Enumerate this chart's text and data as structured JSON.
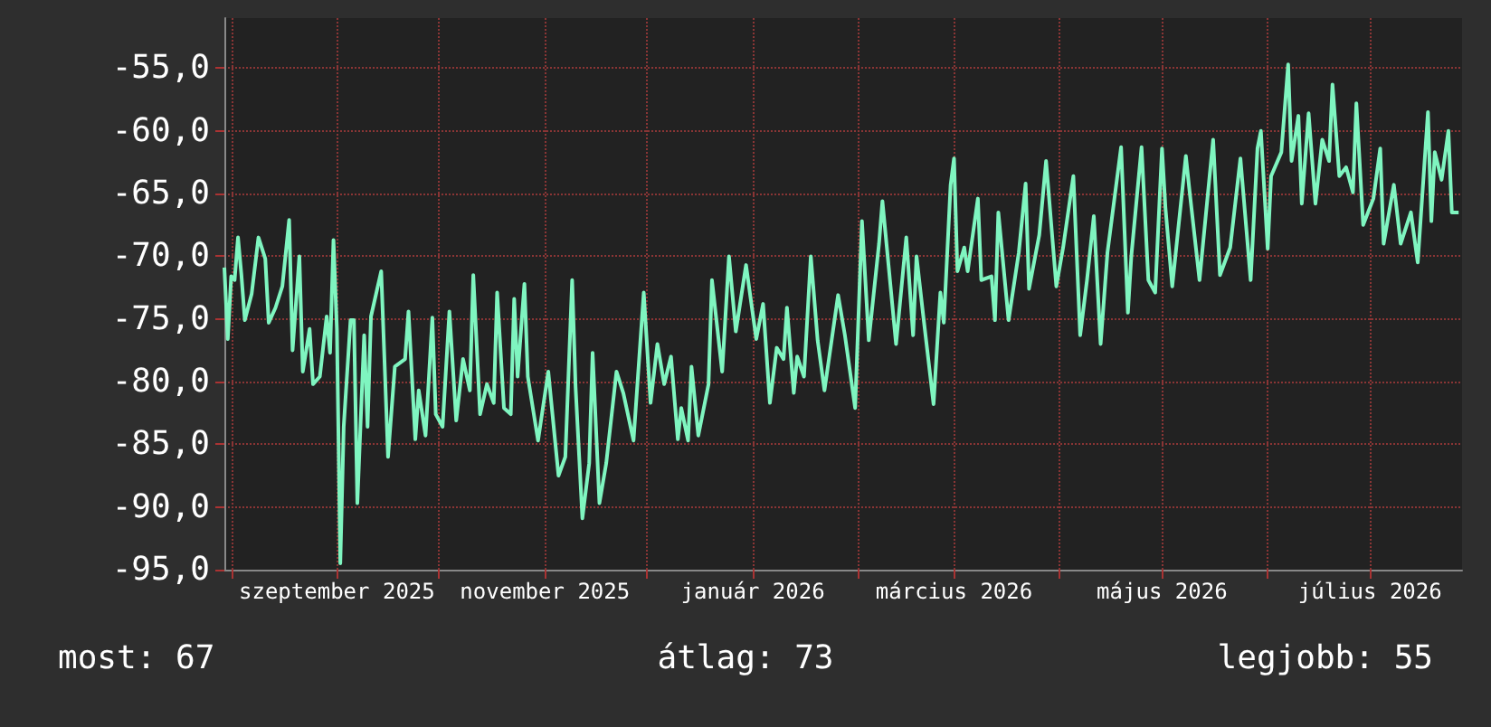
{
  "chart_data": {
    "type": "line",
    "color": "#7ff5c0",
    "marker": "none",
    "grid": true,
    "xlim": [
      "2025-07-30",
      "2026-07-28"
    ],
    "ylim": [
      -95,
      -51
    ],
    "xticks": [
      {
        "value": "2025-08-01",
        "label": null
      },
      {
        "value": "2025-09-01",
        "label": "szeptember 2025"
      },
      {
        "value": "2025-10-01",
        "label": null
      },
      {
        "value": "2025-11-01",
        "label": "november 2025"
      },
      {
        "value": "2025-12-01",
        "label": null
      },
      {
        "value": "2026-01-01",
        "label": "január 2026"
      },
      {
        "value": "2026-02-01",
        "label": null
      },
      {
        "value": "2026-03-01",
        "label": "március 2026"
      },
      {
        "value": "2026-04-01",
        "label": null
      },
      {
        "value": "2026-05-01",
        "label": "május 2026"
      },
      {
        "value": "2026-06-01",
        "label": null
      },
      {
        "value": "2026-07-01",
        "label": "július 2026"
      }
    ],
    "yticks": [
      {
        "value": -95,
        "label": "-95,0"
      },
      {
        "value": -90,
        "label": "-90,0"
      },
      {
        "value": -85,
        "label": "-85,0"
      },
      {
        "value": -80,
        "label": "-80,0"
      },
      {
        "value": -75,
        "label": "-75,0"
      },
      {
        "value": -70,
        "label": "-70,0"
      },
      {
        "value": -65,
        "label": "-65,0"
      },
      {
        "value": -60,
        "label": "-60,0"
      },
      {
        "value": -55,
        "label": "-55,0"
      }
    ],
    "annotations": [
      "most: 67",
      "átlag: 73",
      "legjobb: 55"
    ],
    "x": [
      "2025-07-30",
      "2025-07-31",
      "2025-08-01",
      "2025-08-02",
      "2025-08-03",
      "2025-08-04",
      "2025-08-05",
      "2025-08-07",
      "2025-08-09",
      "2025-08-11",
      "2025-08-12",
      "2025-08-14",
      "2025-08-16",
      "2025-08-18",
      "2025-08-19",
      "2025-08-21",
      "2025-08-22",
      "2025-08-24",
      "2025-08-25",
      "2025-08-27",
      "2025-08-29",
      "2025-08-30",
      "2025-08-31",
      "2025-09-01",
      "2025-09-02",
      "2025-09-03",
      "2025-09-05",
      "2025-09-06",
      "2025-09-07",
      "2025-09-09",
      "2025-09-10",
      "2025-09-11",
      "2025-09-14",
      "2025-09-16",
      "2025-09-18",
      "2025-09-21",
      "2025-09-22",
      "2025-09-24",
      "2025-09-25",
      "2025-09-27",
      "2025-09-29",
      "2025-09-30",
      "2025-10-02",
      "2025-10-04",
      "2025-10-06",
      "2025-10-08",
      "2025-10-10",
      "2025-10-11",
      "2025-10-13",
      "2025-10-15",
      "2025-10-17",
      "2025-10-18",
      "2025-10-20",
      "2025-10-22",
      "2025-10-23",
      "2025-10-24",
      "2025-10-26",
      "2025-10-27",
      "2025-10-30",
      "2025-11-02",
      "2025-11-05",
      "2025-11-07",
      "2025-11-09",
      "2025-11-10",
      "2025-11-12",
      "2025-11-14",
      "2025-11-15",
      "2025-11-17",
      "2025-11-19",
      "2025-11-22",
      "2025-11-24",
      "2025-11-27",
      "2025-11-30",
      "2025-12-02",
      "2025-12-04",
      "2025-12-06",
      "2025-12-08",
      "2025-12-10",
      "2025-12-11",
      "2025-12-13",
      "2025-12-14",
      "2025-12-16",
      "2025-12-19",
      "2025-12-20",
      "2025-12-23",
      "2025-12-25",
      "2025-12-27",
      "2025-12-30",
      "2026-01-02",
      "2026-01-04",
      "2026-01-06",
      "2026-01-08",
      "2026-01-10",
      "2026-01-11",
      "2026-01-13",
      "2026-01-14",
      "2026-01-16",
      "2026-01-18",
      "2026-01-20",
      "2026-01-22",
      "2026-01-26",
      "2026-01-28",
      "2026-01-31",
      "2026-02-02",
      "2026-02-04",
      "2026-02-07",
      "2026-02-08",
      "2026-02-12",
      "2026-02-15",
      "2026-02-17",
      "2026-02-18",
      "2026-02-20",
      "2026-02-23",
      "2026-02-25",
      "2026-02-26",
      "2026-02-28",
      "2026-03-01",
      "2026-03-02",
      "2026-03-04",
      "2026-03-05",
      "2026-03-08",
      "2026-03-09",
      "2026-03-12",
      "2026-03-13",
      "2026-03-14",
      "2026-03-17",
      "2026-03-20",
      "2026-03-22",
      "2026-03-23",
      "2026-03-26",
      "2026-03-28",
      "2026-03-31",
      "2026-04-02",
      "2026-04-05",
      "2026-04-07",
      "2026-04-09",
      "2026-04-11",
      "2026-04-13",
      "2026-04-15",
      "2026-04-19",
      "2026-04-21",
      "2026-04-22",
      "2026-04-25",
      "2026-04-27",
      "2026-04-29",
      "2026-05-01",
      "2026-05-02",
      "2026-05-04",
      "2026-05-08",
      "2026-05-09",
      "2026-05-12",
      "2026-05-16",
      "2026-05-18",
      "2026-05-21",
      "2026-05-24",
      "2026-05-27",
      "2026-05-29",
      "2026-05-30",
      "2026-06-01",
      "2026-06-02",
      "2026-06-05",
      "2026-06-07",
      "2026-06-08",
      "2026-06-10",
      "2026-06-11",
      "2026-06-13",
      "2026-06-15",
      "2026-06-17",
      "2026-06-19",
      "2026-06-20",
      "2026-06-22",
      "2026-06-24",
      "2026-06-26",
      "2026-06-27",
      "2026-06-29",
      "2026-07-02",
      "2026-07-04",
      "2026-07-05",
      "2026-07-08",
      "2026-07-10",
      "2026-07-13",
      "2026-07-15",
      "2026-07-18",
      "2026-07-19",
      "2026-07-20",
      "2026-07-22",
      "2026-07-24",
      "2026-07-25",
      "2026-07-27"
    ],
    "values": [
      -70.9,
      -76.6,
      -71.6,
      -71.9,
      -68.5,
      -71.5,
      -75.1,
      -73,
      -68.5,
      -70.2,
      -75.3,
      -74.1,
      -72.4,
      -67.1,
      -77.5,
      -70,
      -79.2,
      -75.8,
      -80.2,
      -79.6,
      -74.8,
      -77.7,
      -68.7,
      -75.8,
      -94.5,
      -83.6,
      -75.1,
      -75.1,
      -89.7,
      -76.3,
      -83.6,
      -74.8,
      -71.2,
      -86,
      -78.8,
      -78.2,
      -74.4,
      -84.6,
      -80.7,
      -84.3,
      -74.9,
      -82.6,
      -83.6,
      -74.4,
      -83.1,
      -78.2,
      -80.7,
      -71.5,
      -82.6,
      -80.2,
      -81.7,
      -72.9,
      -82.1,
      -82.6,
      -73.4,
      -79.6,
      -72.2,
      -79.6,
      -84.7,
      -79.2,
      -87.5,
      -86,
      -71.9,
      -80.4,
      -90.9,
      -86.5,
      -77.7,
      -89.7,
      -86.5,
      -79.2,
      -80.9,
      -84.7,
      -72.9,
      -81.7,
      -77,
      -80.2,
      -78,
      -84.6,
      -82.1,
      -84.7,
      -78.8,
      -84.3,
      -80.2,
      -71.9,
      -79.2,
      -70,
      -76,
      -70.7,
      -76.6,
      -73.8,
      -81.7,
      -77.3,
      -78.2,
      -74.1,
      -80.9,
      -78,
      -79.6,
      -70,
      -76.7,
      -80.7,
      -73.1,
      -76.3,
      -82.1,
      -67.2,
      -76.7,
      -69,
      -65.6,
      -77,
      -68.5,
      -76.3,
      -70,
      -74.8,
      -81.8,
      -72.9,
      -75.3,
      -64.3,
      -62.2,
      -71.2,
      -69.3,
      -71.2,
      -65.4,
      -71.9,
      -71.6,
      -75.1,
      -66.5,
      -75.1,
      -69.7,
      -64.2,
      -72.6,
      -68.3,
      -62.4,
      -72.4,
      -69.3,
      -63.6,
      -76.3,
      -71.9,
      -66.8,
      -77,
      -69.7,
      -61.3,
      -74.5,
      -70,
      -61.3,
      -71.9,
      -72.9,
      -61.4,
      -66.1,
      -72.4,
      -62,
      -64.6,
      -71.9,
      -60.7,
      -71.5,
      -69.3,
      -62.2,
      -71.9,
      -61.4,
      -60,
      -69.4,
      -63.6,
      -61.7,
      -54.7,
      -62.4,
      -58.8,
      -65.8,
      -58.6,
      -65.8,
      -60.7,
      -62.4,
      -56.3,
      -63.6,
      -62.9,
      -64.9,
      -57.8,
      -67.5,
      -65.4,
      -61.4,
      -69,
      -64.3,
      -69,
      -66.5,
      -70.5,
      -58.5,
      -67.2,
      -61.7,
      -63.9,
      -60,
      -66.5,
      -66.5
    ]
  }
}
